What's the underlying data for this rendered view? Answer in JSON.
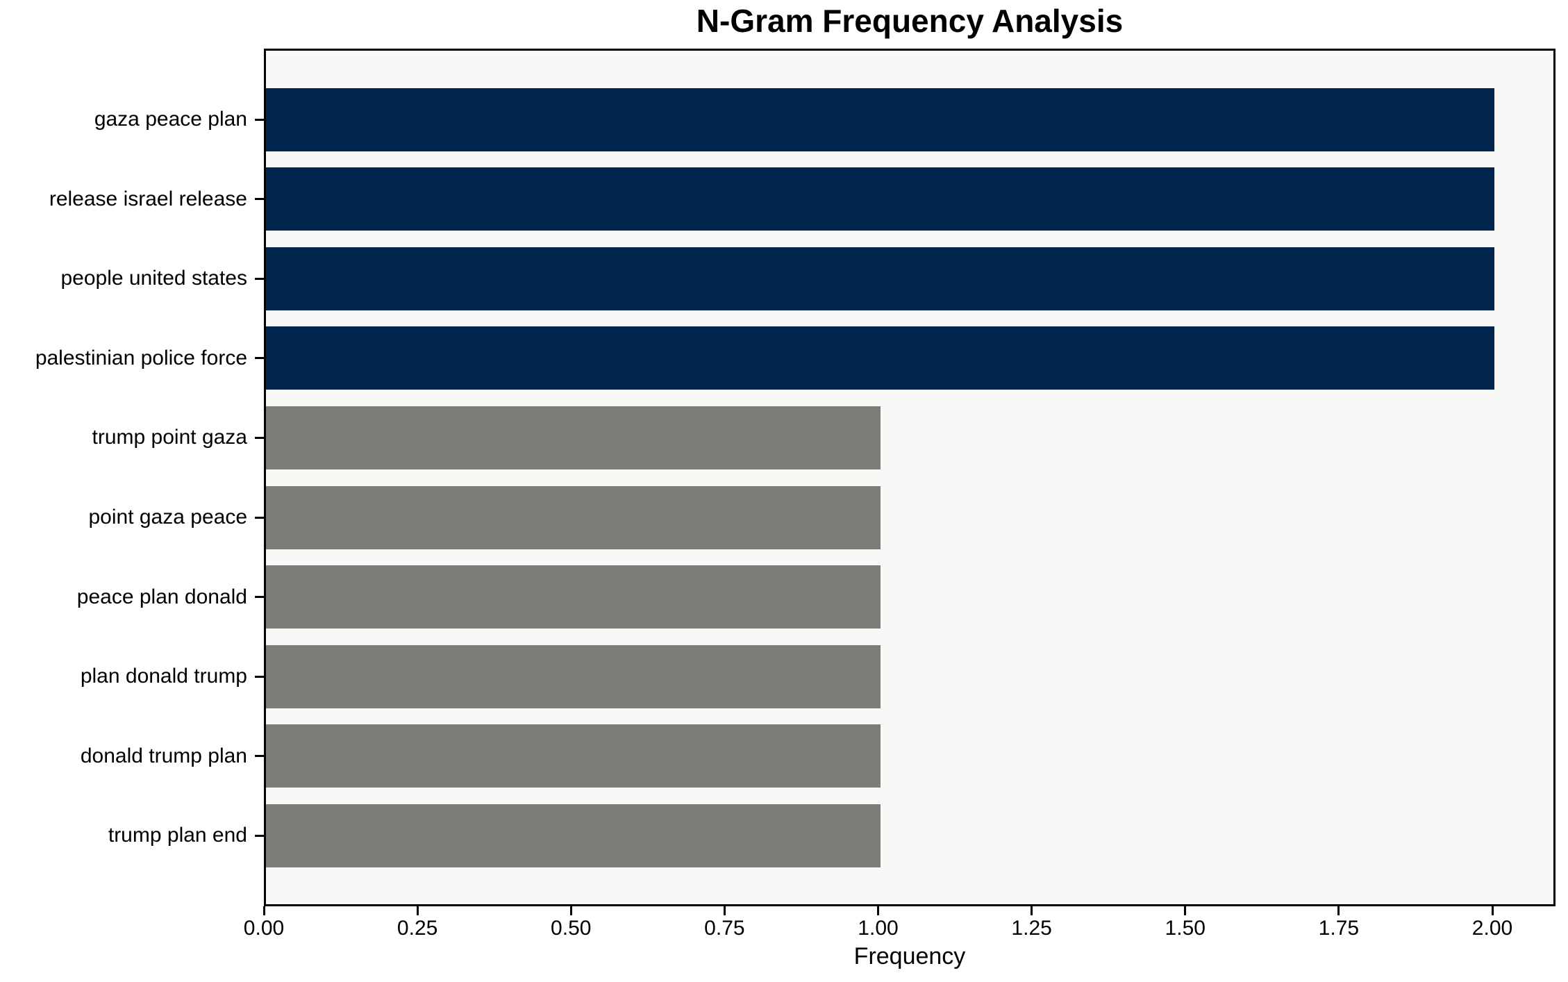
{
  "chart_data": {
    "type": "bar",
    "orientation": "horizontal",
    "title": "N-Gram Frequency Analysis",
    "xlabel": "Frequency",
    "ylabel": "",
    "categories": [
      "gaza peace plan",
      "release israel release",
      "people united states",
      "palestinian police force",
      "trump point gaza",
      "point gaza peace",
      "peace plan donald",
      "plan donald trump",
      "donald trump plan",
      "trump plan end"
    ],
    "values": [
      2,
      2,
      2,
      2,
      1,
      1,
      1,
      1,
      1,
      1
    ],
    "bar_colors": [
      "#02254e",
      "#02254e",
      "#02254e",
      "#02254e",
      "#7b7b77",
      "#7b7b77",
      "#7b7b77",
      "#7b7b77",
      "#7b7b77",
      "#7b7b77"
    ],
    "xlim": [
      0,
      2.1
    ],
    "xticks": [
      0.0,
      0.25,
      0.5,
      0.75,
      1.0,
      1.25,
      1.5,
      1.75,
      2.0
    ],
    "xtick_labels": [
      "0.00",
      "0.25",
      "0.50",
      "0.75",
      "1.00",
      "1.25",
      "1.50",
      "1.75",
      "2.00"
    ],
    "grid": false,
    "legend": null,
    "colors": {
      "high_frequency_bar": "#02254e",
      "low_frequency_bar": "#7b7b77",
      "plot_background": "#f8f8f7",
      "figure_background": "#ffffff",
      "spine": "#000000",
      "text": "#000000"
    }
  }
}
